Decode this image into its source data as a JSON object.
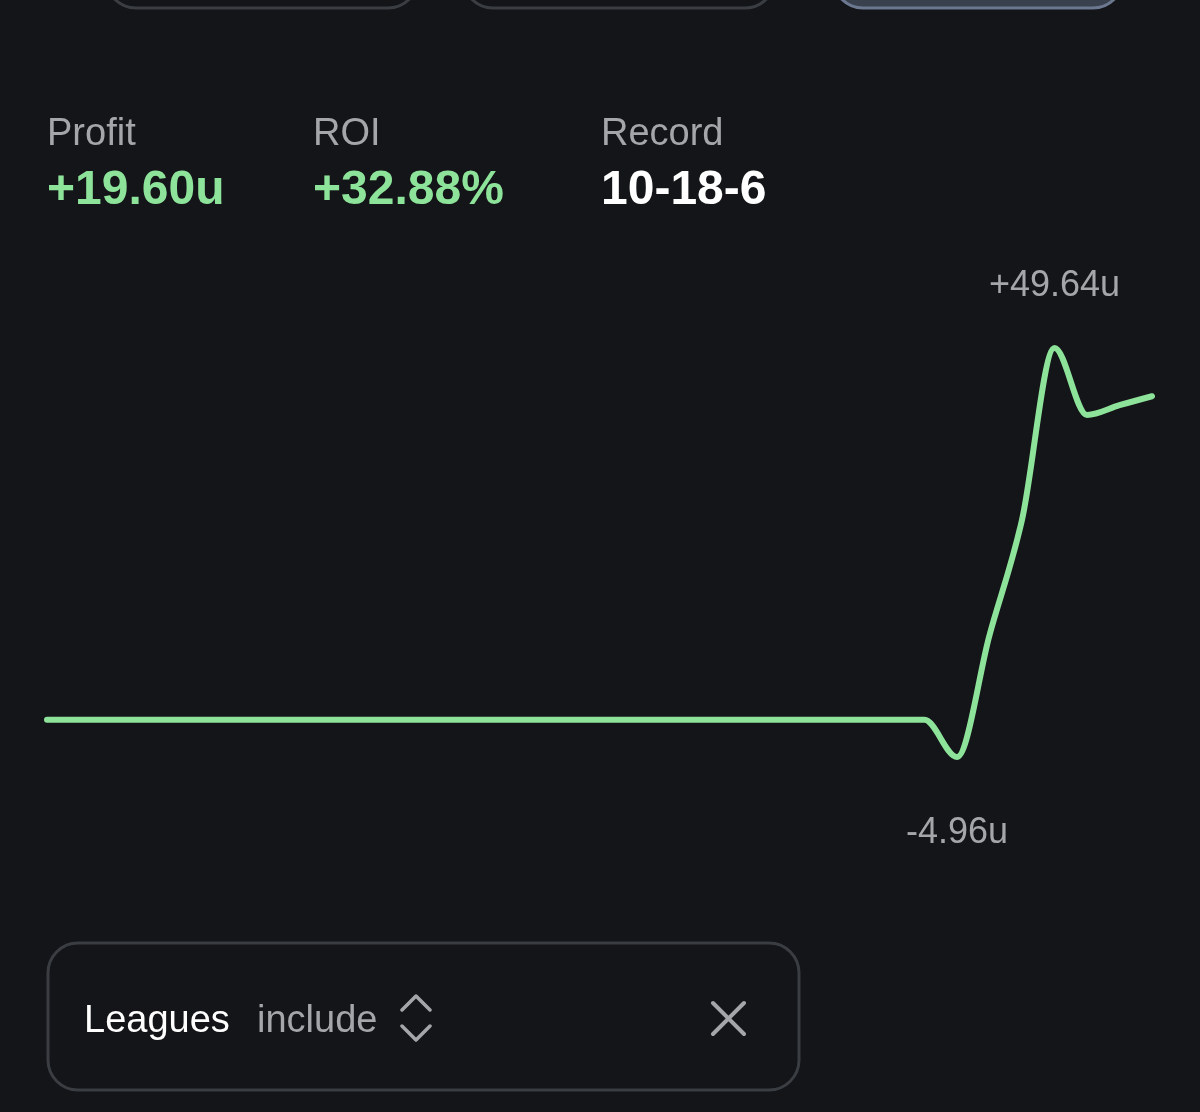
{
  "chart_data": {
    "type": "line",
    "annotations": [
      "Profit",
      "+19.60u",
      "ROI",
      "+32.88%",
      "Record",
      "10-18-6",
      "Leagues",
      "include"
    ],
    "categories": [
      null,
      null,
      null,
      null,
      null,
      null,
      null,
      null,
      null,
      null,
      null,
      null,
      null,
      null,
      null,
      null,
      null,
      null,
      null,
      null,
      null,
      null,
      null,
      null,
      null,
      null,
      null,
      null,
      null,
      null,
      null,
      null,
      null,
      null,
      null
    ],
    "series": [
      {
        "color": "#8ee39a",
        "values": [
          0,
          0,
          0,
          0,
          0,
          0,
          0,
          0,
          0,
          0,
          0,
          0,
          0,
          0,
          0,
          0,
          0,
          0,
          0,
          0,
          0,
          0,
          0,
          0,
          0,
          0,
          0,
          0,
          -4.96,
          11.3,
          26.7,
          49.64,
          40.7,
          42.0,
          43.2
        ],
        "value_labels": [
          null,
          null,
          null,
          null,
          null,
          null,
          null,
          null,
          null,
          null,
          null,
          null,
          null,
          null,
          null,
          null,
          null,
          null,
          null,
          null,
          null,
          null,
          null,
          null,
          null,
          null,
          null,
          null,
          "-4.96u",
          null,
          null,
          "+49.64u",
          null,
          null,
          null
        ]
      }
    ]
  }
}
